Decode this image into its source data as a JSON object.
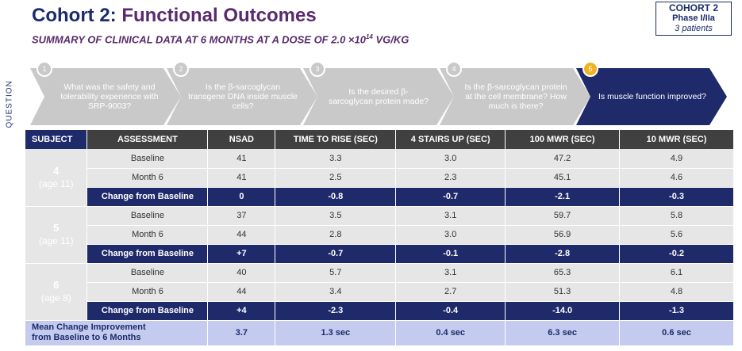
{
  "header": {
    "title_prefix": "Cohort 2: ",
    "title_accent": "Functional Outcomes",
    "subtitle_main": "SUMMARY OF CLINICAL DATA AT 6 MONTHS AT A DOSE OF 2.0 ×10",
    "subtitle_exp": "14",
    "subtitle_unit": " VG/KG"
  },
  "cohort_box": {
    "line1": "COHORT 2",
    "line2": "Phase I/IIa",
    "line3": "3 patients"
  },
  "question_label": "QUESTION",
  "steps": [
    {
      "num": "1",
      "text": "What was the safety and tolerability experience with SRP-9003?"
    },
    {
      "num": "2",
      "text": "Is the β-sarcoglycan transgene DNA inside muscle cells?"
    },
    {
      "num": "3",
      "text": "Is the desired β-sarcoglycan protein made?"
    },
    {
      "num": "4",
      "text": "Is the β-sarcoglycan protein at the cell membrane? How much is there?"
    },
    {
      "num": "5",
      "text": "Is muscle function improved?"
    }
  ],
  "colors": {
    "navy": "#1f2a6b",
    "purple": "#5a2a6e",
    "inactive_step": "#c9c9c9",
    "active_badge": "#f0b323",
    "mean_row": "#c5cbee"
  },
  "table": {
    "headers": [
      "SUBJECT",
      "ASSESSMENT",
      "NSAD",
      "TIME TO RISE (SEC)",
      "4 STAIRS UP (SEC)",
      "100 MWR (SEC)",
      "10 MWR (SEC)"
    ],
    "subjects": [
      {
        "id": "4",
        "age": "(age 11)",
        "rows": [
          [
            "Baseline",
            "41",
            "3.3",
            "3.0",
            "47.2",
            "4.9"
          ],
          [
            "Month 6",
            "41",
            "2.5",
            "2.3",
            "45.1",
            "4.6"
          ],
          [
            "Change from Baseline",
            "0",
            "-0.8",
            "-0.7",
            "-2.1",
            "-0.3"
          ]
        ]
      },
      {
        "id": "5",
        "age": "(age 11)",
        "rows": [
          [
            "Baseline",
            "37",
            "3.5",
            "3.1",
            "59.7",
            "5.8"
          ],
          [
            "Month 6",
            "44",
            "2.8",
            "3.0",
            "56.9",
            "5.6"
          ],
          [
            "Change from Baseline",
            "+7",
            "-0.7",
            "-0.1",
            "-2.8",
            "-0.2"
          ]
        ]
      },
      {
        "id": "6",
        "age": "(age 8)",
        "rows": [
          [
            "Baseline",
            "40",
            "5.7",
            "3.1",
            "65.3",
            "6.1"
          ],
          [
            "Month 6",
            "44",
            "3.4",
            "2.7",
            "51.3",
            "4.8"
          ],
          [
            "Change from Baseline",
            "+4",
            "-2.3",
            "-0.4",
            "-14.0",
            "-1.3"
          ]
        ]
      }
    ],
    "mean_label_line1": "Mean Change Improvement",
    "mean_label_line2": "from Baseline to 6 Months",
    "mean_values": [
      "3.7",
      "1.3 sec",
      "0.4 sec",
      "6.3 sec",
      "0.6 sec"
    ]
  }
}
